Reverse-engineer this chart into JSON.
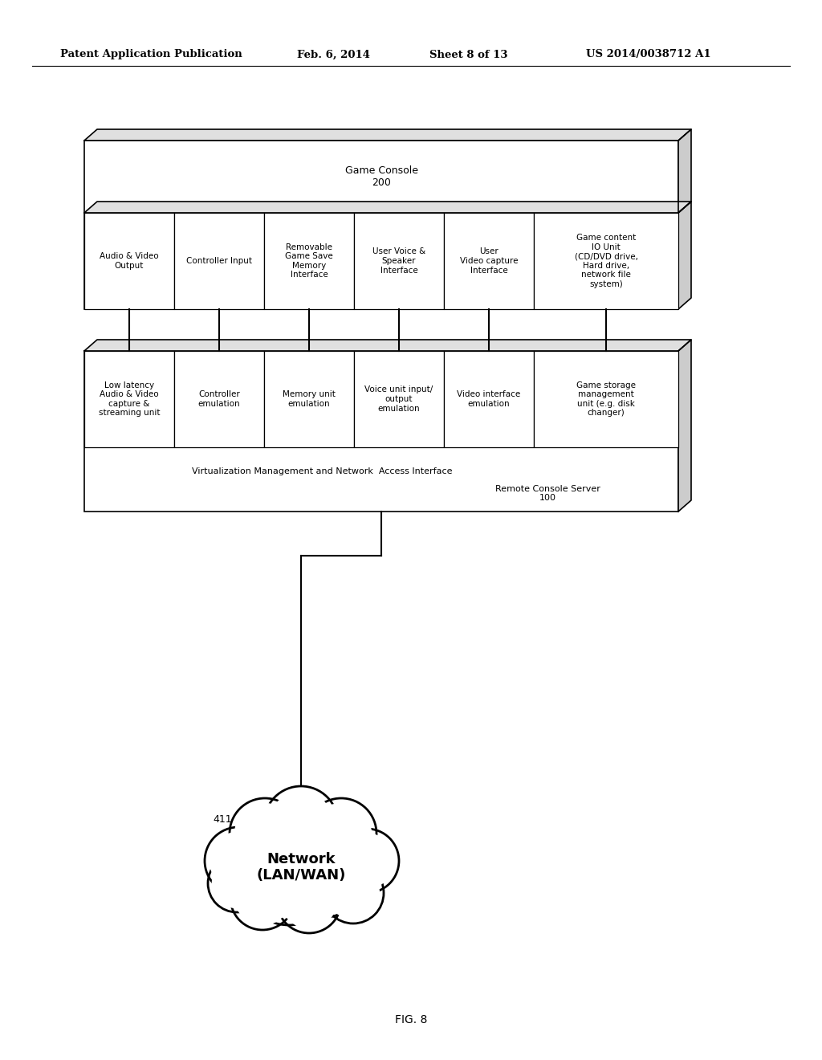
{
  "bg_color": "#ffffff",
  "header_text": "Patent Application Publication",
  "header_date": "Feb. 6, 2014",
  "header_sheet": "Sheet 8 of 13",
  "header_patent": "US 2014/0038712 A1",
  "fig_label": "FIG. 8",
  "game_console_label": "Game Console\n200",
  "server_label1": "Virtualization Management and Network  Access Interface",
  "server_label2": "Remote Console Server\n100",
  "gc_cells": [
    {
      "label": "Audio & Video\nOutput"
    },
    {
      "label": "Controller Input"
    },
    {
      "label": "Removable\nGame Save\nMemory\nInterface"
    },
    {
      "label": "User Voice &\nSpeaker\nInterface"
    },
    {
      "label": "User\nVideo capture\nInterface"
    },
    {
      "label": "Game content\nIO Unit\n(CD/DVD drive,\nHard drive,\nnetwork file\nsystem)"
    }
  ],
  "server_cells": [
    {
      "label": "Low latency\nAudio & Video\ncapture &\nstreaming unit"
    },
    {
      "label": "Controller\nemulation"
    },
    {
      "label": "Memory unit\nemulation"
    },
    {
      "label": "Voice unit input/\noutput\nemulation"
    },
    {
      "label": "Video interface\nemulation"
    },
    {
      "label": "Game storage\nmanagement\nunit (e.g. disk\nchanger)"
    }
  ],
  "network_label": "Network\n(LAN/WAN)",
  "network_411": "411"
}
